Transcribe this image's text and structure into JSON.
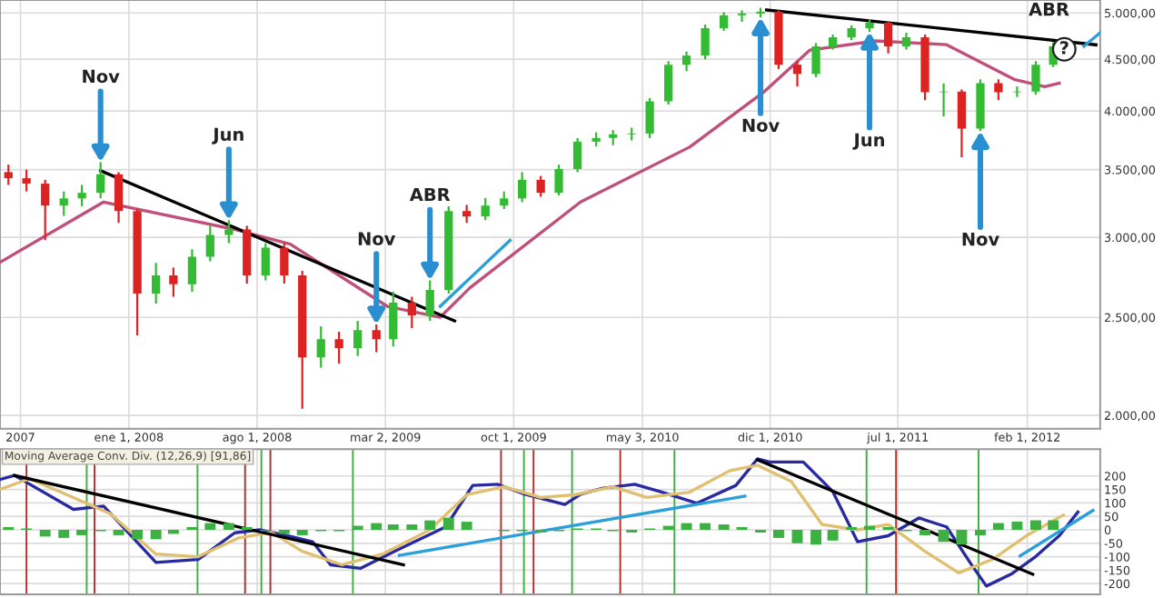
{
  "chart_data": [
    {
      "type": "candlestick",
      "x": [
        "2007-06-15",
        "2007-07-15",
        "2007-08-15",
        "2007-09-15",
        "2007-10-15",
        "2007-11-15",
        "2007-12-15",
        "2008-01-15",
        "2008-02-15",
        "2008-03-15",
        "2008-04-15",
        "2008-05-15",
        "2008-06-15",
        "2008-07-15",
        "2008-08-15",
        "2008-09-15",
        "2008-10-15",
        "2008-11-15",
        "2008-12-15",
        "2009-01-15",
        "2009-02-15",
        "2009-03-15",
        "2009-04-15",
        "2009-05-15",
        "2009-06-15",
        "2009-07-15",
        "2009-08-15",
        "2009-09-15",
        "2009-10-15",
        "2009-11-15",
        "2009-12-15",
        "2010-01-15",
        "2010-02-15",
        "2010-03-15",
        "2010-04-15",
        "2010-05-15",
        "2010-06-15",
        "2010-07-15",
        "2010-08-15",
        "2010-09-15",
        "2010-10-15",
        "2010-11-15",
        "2010-12-15",
        "2011-01-15",
        "2011-02-15",
        "2011-03-15",
        "2011-04-15",
        "2011-05-15",
        "2011-06-15",
        "2011-07-15",
        "2011-08-15",
        "2011-09-15",
        "2011-10-15",
        "2011-11-15",
        "2011-12-15",
        "2012-01-15",
        "2012-02-15",
        "2012-03-15"
      ],
      "ohlc": [
        [
          3480,
          3540,
          3380,
          3432
        ],
        [
          3432,
          3500,
          3330,
          3390
        ],
        [
          3390,
          3420,
          2980,
          3225
        ],
        [
          3225,
          3330,
          3150,
          3278
        ],
        [
          3278,
          3380,
          3220,
          3320
        ],
        [
          3320,
          3560,
          3280,
          3463
        ],
        [
          3463,
          3480,
          3100,
          3185
        ],
        [
          3185,
          3200,
          2400,
          2640
        ],
        [
          2640,
          2830,
          2580,
          2751
        ],
        [
          2751,
          2800,
          2620,
          2696
        ],
        [
          2696,
          2920,
          2650,
          2870
        ],
        [
          2870,
          3080,
          2840,
          3016
        ],
        [
          3016,
          3120,
          2960,
          3054
        ],
        [
          3054,
          3080,
          2700,
          2751
        ],
        [
          2751,
          2960,
          2720,
          2930
        ],
        [
          2930,
          2960,
          2700,
          2751
        ],
        [
          2751,
          2780,
          2030,
          2282
        ],
        [
          2282,
          2450,
          2230,
          2379
        ],
        [
          2379,
          2420,
          2250,
          2331
        ],
        [
          2331,
          2480,
          2290,
          2428
        ],
        [
          2428,
          2460,
          2310,
          2379
        ],
        [
          2379,
          2650,
          2340,
          2586
        ],
        [
          2586,
          2620,
          2440,
          2512
        ],
        [
          2512,
          2720,
          2480,
          2662
        ],
        [
          2662,
          3220,
          2640,
          3185
        ],
        [
          3185,
          3230,
          3100,
          3146
        ],
        [
          3146,
          3280,
          3120,
          3225
        ],
        [
          3225,
          3330,
          3200,
          3278
        ],
        [
          3278,
          3480,
          3250,
          3420
        ],
        [
          3420,
          3450,
          3290,
          3320
        ],
        [
          3320,
          3540,
          3300,
          3505
        ],
        [
          3505,
          3760,
          3480,
          3730
        ],
        [
          3730,
          3810,
          3690,
          3762
        ],
        [
          3762,
          3830,
          3700,
          3793
        ],
        [
          3793,
          3850,
          3740,
          3800
        ],
        [
          3800,
          4120,
          3760,
          4089
        ],
        [
          4089,
          4480,
          4060,
          4444
        ],
        [
          4444,
          4580,
          4380,
          4538
        ],
        [
          4538,
          4870,
          4500,
          4830
        ],
        [
          4830,
          5010,
          4800,
          4974
        ],
        [
          4974,
          5030,
          4900,
          4994
        ],
        [
          4994,
          5060,
          4950,
          5015
        ],
        [
          5015,
          5030,
          4400,
          4444
        ],
        [
          4444,
          4480,
          4230,
          4352
        ],
        [
          4352,
          4670,
          4320,
          4634
        ],
        [
          4634,
          4760,
          4600,
          4731
        ],
        [
          4731,
          4860,
          4700,
          4830
        ],
        [
          4830,
          4930,
          4790,
          4891
        ],
        [
          4891,
          4900,
          4560,
          4634
        ],
        [
          4634,
          4780,
          4600,
          4731
        ],
        [
          4731,
          4760,
          4100,
          4175
        ],
        [
          4175,
          4260,
          3950,
          4180
        ],
        [
          4180,
          4200,
          3600,
          3843
        ],
        [
          3843,
          4300,
          3820,
          4262
        ],
        [
          4262,
          4300,
          4100,
          4175
        ],
        [
          4175,
          4230,
          4130,
          4180
        ],
        [
          4180,
          4480,
          4150,
          4444
        ],
        [
          4444,
          4680,
          4420,
          4634
        ]
      ],
      "colors": [
        "#dd2222",
        "#dd2222",
        "#dd2222",
        "#33bb33",
        "#33bb33",
        "#33bb33",
        "#dd2222",
        "#dd2222",
        "#33bb33",
        "#dd2222",
        "#33bb33",
        "#33bb33",
        "#33bb33",
        "#dd2222",
        "#33bb33",
        "#dd2222",
        "#dd2222",
        "#33bb33",
        "#dd2222",
        "#33bb33",
        "#dd2222",
        "#33bb33",
        "#dd2222",
        "#33bb33",
        "#33bb33",
        "#dd2222",
        "#33bb33",
        "#33bb33",
        "#33bb33",
        "#dd2222",
        "#33bb33",
        "#33bb33",
        "#33bb33",
        "#33bb33",
        "#33bb33",
        "#33bb33",
        "#33bb33",
        "#33bb33",
        "#33bb33",
        "#33bb33",
        "#33bb33",
        "#33bb33",
        "#dd2222",
        "#dd2222",
        "#33bb33",
        "#33bb33",
        "#33bb33",
        "#33bb33",
        "#dd2222",
        "#33bb33",
        "#dd2222",
        "#33bb33",
        "#dd2222",
        "#33bb33",
        "#dd2222",
        "#33bb33",
        "#33bb33",
        "#33bb33"
      ],
      "series": [
        {
          "type": "line",
          "color": "#c0507a",
          "x": [
            "2007-06-01",
            "2007-11-20",
            "2008-06-25",
            "2008-09-25",
            "2009-03-05",
            "2009-06-01",
            "2009-07-20",
            "2010-01-20",
            "2010-07-20",
            "2010-11-20",
            "2011-02-05",
            "2011-05-25",
            "2011-09-20",
            "2012-01-10",
            "2012-03-01",
            "2012-03-25"
          ],
          "values": [
            2834,
            3251,
            3054,
            2954,
            2564,
            2501,
            2673,
            3251,
            3684,
            4175,
            4595,
            4692,
            4652,
            4299,
            4227,
            4262
          ]
        },
        {
          "type": "line",
          "color": "#000000",
          "x": [
            "2007-11-15",
            "2009-06-25"
          ],
          "values": [
            3491,
            2480
          ]
        },
        {
          "type": "line",
          "color": "#000000",
          "x": [
            "2010-11-25",
            "2012-05-25"
          ],
          "values": [
            5035,
            4650
          ]
        },
        {
          "type": "line",
          "color": "#2a9fd8",
          "x": [
            "2009-06-01",
            "2009-09-25"
          ],
          "values": [
            2564,
            2980
          ]
        },
        {
          "type": "line",
          "color": "#2a9fd8",
          "x": [
            "2012-05-05",
            "2012-06-01"
          ],
          "values": [
            4634,
            4780
          ]
        }
      ],
      "xlim": [
        "2007-06-01",
        "2012-06-01"
      ],
      "xticks": [
        {
          "value": "2007-07-05",
          "label": "2007"
        },
        {
          "value": "2008-01-01",
          "label": "ene 1, 2008"
        },
        {
          "value": "2008-08-01",
          "label": "ago 1, 2008"
        },
        {
          "value": "2009-03-02",
          "label": "mar 2, 2009"
        },
        {
          "value": "2009-10-01",
          "label": "oct 1, 2009"
        },
        {
          "value": "2010-05-03",
          "label": "may 3, 2010"
        },
        {
          "value": "2010-12-01",
          "label": "dic 1, 2010"
        },
        {
          "value": "2011-07-01",
          "label": "jul 1, 2011"
        },
        {
          "value": "2012-02-01",
          "label": "feb 1, 2012"
        }
      ],
      "ylim": [
        1940,
        5150
      ],
      "yticks": [
        {
          "value": 2000,
          "label": "2.000,00"
        },
        {
          "value": 2500,
          "label": "2.500,00"
        },
        {
          "value": 3000,
          "label": "3.000,00"
        },
        {
          "value": 3500,
          "label": "3.500,00"
        },
        {
          "value": 4000,
          "label": "4.000,00"
        },
        {
          "value": 4500,
          "label": "4.500,00"
        },
        {
          "value": 5000,
          "label": "5.000,00"
        }
      ],
      "log": true,
      "grid": true,
      "annotations": [
        {
          "text": "Nov",
          "x": "2007-11-15",
          "y": 3560
        },
        {
          "text": "Jun",
          "x": "2008-06-15",
          "y": 3120
        },
        {
          "text": "Nov",
          "x": "2009-02-15",
          "y": 2460
        },
        {
          "text": "ABR",
          "x": "2009-05-15",
          "y": 2720
        },
        {
          "text": "Nov",
          "x": "2010-11-15",
          "y": 4950
        },
        {
          "text": "Jun",
          "x": "2011-05-15",
          "y": 4790
        },
        {
          "text": "Nov",
          "x": "2011-11-15",
          "y": 3820
        },
        "ABR",
        "?"
      ]
    },
    {
      "type": "line",
      "title": "Moving Average Conv. Div. (12,26,9) [91,86]",
      "series": [
        {
          "type": "bar",
          "color": "#3cb043",
          "x": [
            "2007-06-15",
            "2007-07-15",
            "2007-08-15",
            "2007-09-15",
            "2007-10-15",
            "2007-11-15",
            "2007-12-15",
            "2008-01-15",
            "2008-02-15",
            "2008-03-15",
            "2008-04-15",
            "2008-05-15",
            "2008-06-15",
            "2008-07-15",
            "2008-08-15",
            "2008-09-15",
            "2008-10-15",
            "2008-11-15",
            "2008-12-15",
            "2009-01-15",
            "2009-02-15",
            "2009-03-15",
            "2009-04-15",
            "2009-05-15",
            "2009-06-15",
            "2009-07-15",
            "2009-08-15",
            "2009-09-15",
            "2009-10-15",
            "2009-11-15",
            "2009-12-15",
            "2010-01-15",
            "2010-02-15",
            "2010-03-15",
            "2010-04-15",
            "2010-05-15",
            "2010-06-15",
            "2010-07-15",
            "2010-08-15",
            "2010-09-15",
            "2010-10-15",
            "2010-11-15",
            "2010-12-15",
            "2011-01-15",
            "2011-02-15",
            "2011-03-15",
            "2011-04-15",
            "2011-05-15",
            "2011-06-15",
            "2011-07-15",
            "2011-08-15",
            "2011-09-15",
            "2011-10-15",
            "2011-11-15",
            "2011-12-15",
            "2012-01-15",
            "2012-02-15",
            "2012-03-15"
          ],
          "values": [
            10,
            5,
            -25,
            -30,
            -20,
            -5,
            -20,
            -35,
            -35,
            -15,
            10,
            25,
            25,
            10,
            -5,
            -15,
            -20,
            -5,
            -5,
            15,
            25,
            20,
            20,
            35,
            45,
            30,
            0,
            -5,
            -5,
            -10,
            -5,
            5,
            5,
            -5,
            -10,
            5,
            15,
            25,
            25,
            20,
            10,
            -10,
            -30,
            -50,
            -55,
            -40,
            10,
            15,
            10,
            -5,
            -20,
            -45,
            -55,
            -20,
            25,
            30,
            35,
            35
          ]
        },
        {
          "type": "line",
          "color": "#2a2aa0",
          "x": [
            "2007-06-01",
            "2007-06-25",
            "2007-10-01",
            "2007-11-20",
            "2008-02-15",
            "2008-04-25",
            "2008-06-25",
            "2008-08-05",
            "2008-09-20",
            "2008-11-01",
            "2008-12-01",
            "2009-01-20",
            "2009-03-20",
            "2009-06-10",
            "2009-07-25",
            "2009-09-05",
            "2009-10-20",
            "2009-12-25",
            "2010-01-20",
            "2010-02-25",
            "2010-04-20",
            "2010-06-01",
            "2010-08-01",
            "2010-10-05",
            "2010-11-10",
            "2010-11-30",
            "2011-01-25",
            "2011-03-15",
            "2011-04-25",
            "2011-06-15",
            "2011-08-05",
            "2011-09-20",
            "2011-11-01",
            "2011-11-25",
            "2012-01-05",
            "2012-02-15",
            "2012-03-25",
            "2012-04-25"
          ],
          "values": [
            187,
            202,
            76,
            88,
            -121,
            -110,
            -11,
            0,
            -22,
            -44,
            -130,
            -143,
            -77,
            11,
            165,
            169,
            132,
            94,
            132,
            154,
            169,
            142,
            99,
            165,
            264,
            252,
            252,
            142,
            -44,
            -22,
            44,
            11,
            -132,
            -209,
            -165,
            -99,
            -22,
            66
          ]
        },
        {
          "type": "line",
          "color": "#e0c070",
          "x": [
            "2007-06-01",
            "2007-07-20",
            "2007-10-01",
            "2007-12-01",
            "2008-02-15",
            "2008-04-25",
            "2008-07-01",
            "2008-08-25",
            "2008-10-15",
            "2008-12-20",
            "2009-02-25",
            "2009-05-15",
            "2009-07-15",
            "2009-09-15",
            "2009-11-15",
            "2010-01-10",
            "2010-03-15",
            "2010-05-10",
            "2010-07-20",
            "2010-09-25",
            "2010-11-10",
            "2011-01-05",
            "2011-02-25",
            "2011-04-25",
            "2011-06-15",
            "2011-08-15",
            "2011-10-10",
            "2011-12-05",
            "2012-02-01",
            "2012-04-01"
          ],
          "values": [
            150,
            190,
            120,
            60,
            -90,
            -100,
            -30,
            -10,
            -80,
            -130,
            -90,
            0,
            130,
            160,
            120,
            130,
            160,
            120,
            140,
            220,
            240,
            180,
            20,
            0,
            20,
            -80,
            -160,
            -110,
            -20,
            55
          ]
        },
        {
          "type": "line",
          "color": "#000000",
          "x": [
            "2007-06-25",
            "2009-04-01"
          ],
          "values": [
            202,
            -130
          ]
        },
        {
          "type": "line",
          "color": "#000000",
          "x": [
            "2010-11-10",
            "2012-02-10"
          ],
          "values": [
            260,
            -165
          ]
        },
        {
          "type": "line",
          "color": "#2a9fd8",
          "x": [
            "2009-03-25",
            "2010-10-20"
          ],
          "values": [
            -95,
            125
          ]
        },
        {
          "type": "line",
          "color": "#2a9fd8",
          "x": [
            "2012-01-20",
            "2012-05-20"
          ],
          "values": [
            -97,
            72
          ]
        }
      ],
      "xlim": [
        "2007-06-01",
        "2012-06-01"
      ],
      "xticks": [
        {
          "value": "2008-01-01",
          "label": null
        },
        {
          "value": "2008-08-01",
          "label": null
        },
        {
          "value": "2009-03-02",
          "label": null
        },
        {
          "value": "2009-10-01",
          "label": null
        },
        {
          "value": "2010-05-03",
          "label": null
        },
        {
          "value": "2010-12-01",
          "label": null
        },
        {
          "value": "2011-07-01",
          "label": null
        },
        {
          "value": "2012-02-01",
          "label": null
        }
      ],
      "ylim": [
        -240,
        300
      ],
      "yticks": [
        -200,
        -150,
        -100,
        -50,
        0,
        50,
        100,
        150,
        200
      ],
      "tick_labels": "y",
      "grid": true,
      "ref_lines": [
        {
          "axis": "x",
          "value": "2007-07-15",
          "color": "#b03030"
        },
        {
          "axis": "x",
          "value": "2007-11-05",
          "color": "#b03030"
        },
        {
          "axis": "x",
          "value": "2008-07-12",
          "color": "#b03030"
        },
        {
          "axis": "x",
          "value": "2008-08-23",
          "color": "#b03030"
        },
        {
          "axis": "x",
          "value": "2009-09-10",
          "color": "#b03030"
        },
        {
          "axis": "x",
          "value": "2009-11-03",
          "color": "#b03030"
        },
        {
          "axis": "x",
          "value": "2010-03-27",
          "color": "#b03030"
        },
        {
          "axis": "x",
          "value": "2011-06-28",
          "color": "#b03030"
        },
        {
          "axis": "x",
          "value": "2007-10-23",
          "color": "#40b040"
        },
        {
          "axis": "x",
          "value": "2008-04-24",
          "color": "#40b040"
        },
        {
          "axis": "x",
          "value": "2008-08-08",
          "color": "#40b040"
        },
        {
          "axis": "x",
          "value": "2009-01-07",
          "color": "#40b040"
        },
        {
          "axis": "x",
          "value": "2009-10-18",
          "color": "#40b040"
        },
        {
          "axis": "x",
          "value": "2010-01-06",
          "color": "#40b040"
        },
        {
          "axis": "x",
          "value": "2010-06-25",
          "color": "#40b040"
        },
        {
          "axis": "x",
          "value": "2011-05-10",
          "color": "#40b040"
        },
        {
          "axis": "x",
          "value": "2011-11-12",
          "color": "#40b040"
        }
      ]
    }
  ]
}
